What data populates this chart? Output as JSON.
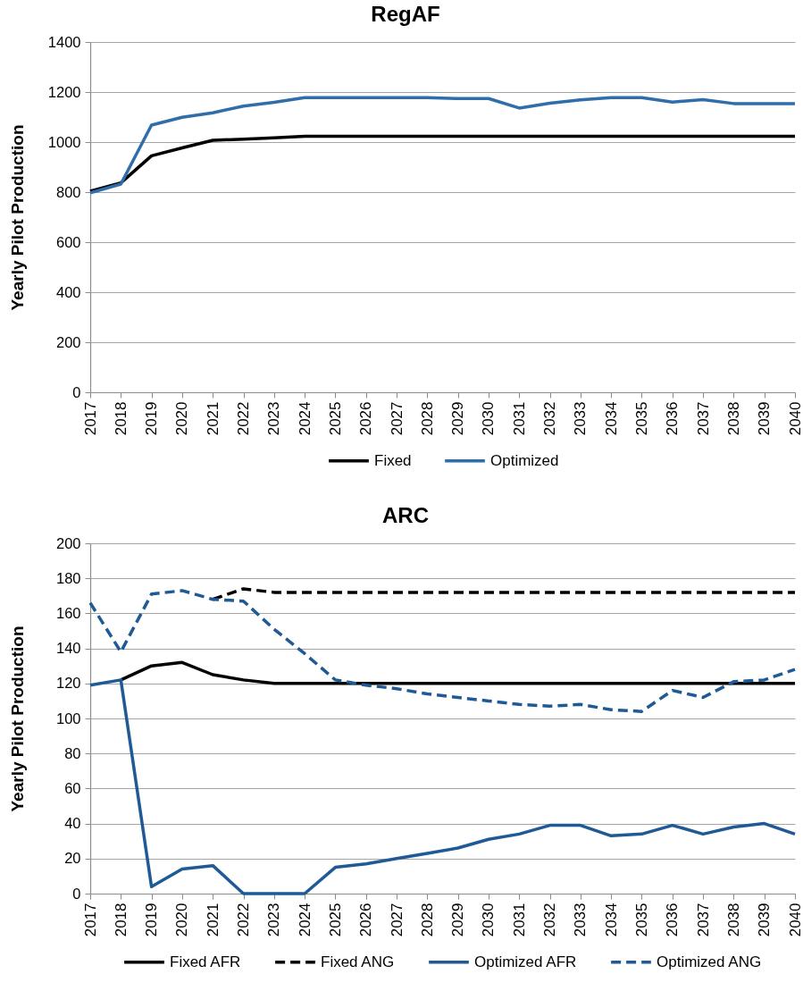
{
  "chart_data": [
    {
      "type": "line",
      "title": "RegAF",
      "ylabel": "Yearly  Pilot Production",
      "categories": [
        "2017",
        "2018",
        "2019",
        "2020",
        "2021",
        "2022",
        "2023",
        "2024",
        "2025",
        "2026",
        "2027",
        "2028",
        "2029",
        "2030",
        "2031",
        "2032",
        "2033",
        "2034",
        "2035",
        "2036",
        "2037",
        "2038",
        "2039",
        "2040"
      ],
      "series": [
        {
          "name": "Fixed",
          "color": "#000000",
          "line_style": "solid",
          "values": [
            804,
            837,
            945,
            977,
            1007,
            1012,
            1017,
            1023,
            1023,
            1023,
            1023,
            1023,
            1023,
            1023,
            1023,
            1023,
            1023,
            1023,
            1023,
            1023,
            1023,
            1023,
            1023,
            1023
          ]
        },
        {
          "name": "Optimized",
          "color": "#2f6eab",
          "line_style": "solid",
          "values": [
            797,
            832,
            1068,
            1099,
            1117,
            1144,
            1159,
            1178,
            1178,
            1178,
            1178,
            1178,
            1174,
            1174,
            1136,
            1155,
            1169,
            1178,
            1178,
            1160,
            1170,
            1154,
            1154,
            1154
          ]
        }
      ],
      "ylim": [
        0,
        1400
      ],
      "yticks": [
        0,
        200,
        400,
        600,
        800,
        1000,
        1200,
        1400
      ],
      "grid": "y",
      "legend": "bottom"
    },
    {
      "type": "line",
      "title": "ARC",
      "ylabel": "Yearly  Pilot Production",
      "categories": [
        "2017",
        "2018",
        "2019",
        "2020",
        "2021",
        "2022",
        "2023",
        "2024",
        "2025",
        "2026",
        "2027",
        "2028",
        "2029",
        "2030",
        "2031",
        "2032",
        "2033",
        "2034",
        "2035",
        "2036",
        "2037",
        "2038",
        "2039",
        "2040"
      ],
      "series": [
        {
          "name": "Fixed AFR",
          "color": "#000000",
          "line_style": "solid",
          "values": [
            null,
            122,
            130,
            132,
            125,
            122,
            120,
            120,
            120,
            120,
            120,
            120,
            120,
            120,
            120,
            120,
            120,
            120,
            120,
            120,
            120,
            120,
            120,
            120
          ]
        },
        {
          "name": "Fixed ANG",
          "color": "#000000",
          "line_style": "dashed",
          "values": [
            null,
            null,
            null,
            null,
            168,
            174,
            172,
            172,
            172,
            172,
            172,
            172,
            172,
            172,
            172,
            172,
            172,
            172,
            172,
            172,
            172,
            172,
            172,
            172
          ]
        },
        {
          "name": "Optimized AFR",
          "color": "#1f5a96",
          "line_style": "solid",
          "values": [
            119,
            122,
            4,
            14,
            16,
            0,
            0,
            0,
            15,
            17,
            20,
            23,
            26,
            31,
            34,
            39,
            39,
            33,
            34,
            39,
            34,
            38,
            40,
            34
          ]
        },
        {
          "name": "Optimized ANG",
          "color": "#1f5a96",
          "line_style": "dashed",
          "values": [
            166,
            138,
            171,
            173,
            168,
            167,
            151,
            137,
            122,
            119,
            117,
            114,
            112,
            110,
            108,
            107,
            108,
            105,
            104,
            116,
            112,
            121,
            122,
            128
          ]
        }
      ],
      "ylim": [
        0,
        200
      ],
      "yticks": [
        0,
        20,
        40,
        60,
        80,
        100,
        120,
        140,
        160,
        180,
        200
      ],
      "grid": "y",
      "legend": "bottom"
    }
  ]
}
